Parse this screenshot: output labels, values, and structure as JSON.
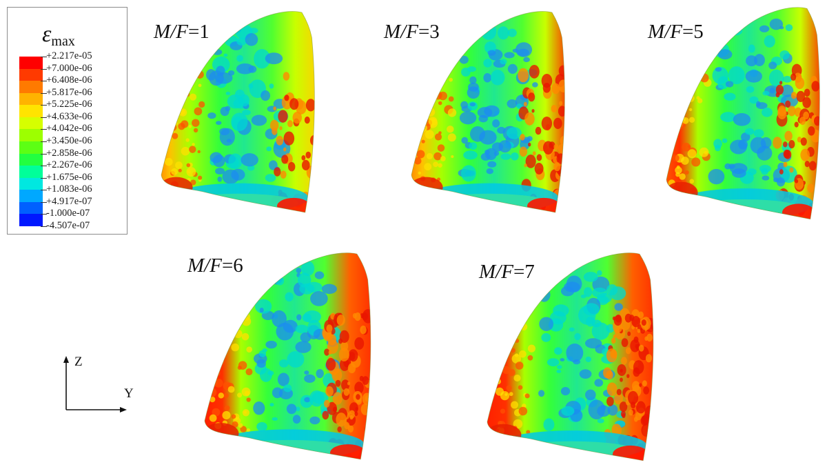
{
  "legend": {
    "title_symbol": "ε",
    "title_sub": "max",
    "labels": [
      "+2.217e-05",
      "+7.000e-06",
      "+6.408e-06",
      "+5.817e-06",
      "+5.225e-06",
      "+4.633e-06",
      "+4.042e-06",
      "+3.450e-06",
      "+2.858e-06",
      "+2.267e-06",
      "+1.675e-06",
      "+1.083e-06",
      "+4.917e-07",
      "-1.000e-07",
      "-4.507e-07"
    ],
    "colors": [
      "#ff0000",
      "#ff3a00",
      "#ff7a00",
      "#ffb300",
      "#ffe400",
      "#d6ff00",
      "#9dff00",
      "#5cff14",
      "#22ff40",
      "#00ff9a",
      "#00e8e0",
      "#00a8ff",
      "#0060ff",
      "#0018ff"
    ]
  },
  "panels": [
    {
      "lhs": "M/F",
      "value": "1"
    },
    {
      "lhs": "M/F",
      "value": "3"
    },
    {
      "lhs": "M/F",
      "value": "5"
    },
    {
      "lhs": "M/F",
      "value": "6"
    },
    {
      "lhs": "M/F",
      "value": "7"
    }
  ],
  "axes": {
    "z_label": "Z",
    "y_label": "Y"
  }
}
